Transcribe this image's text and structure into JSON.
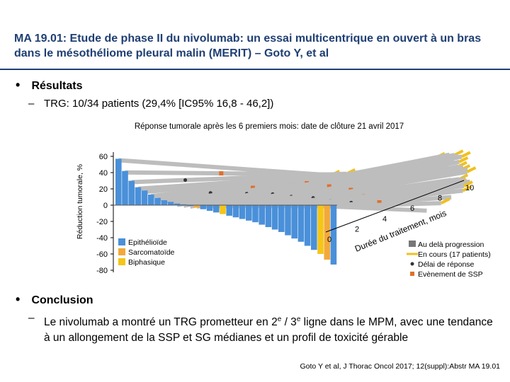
{
  "header": {
    "title": "MA 19.01: Etude de phase II du nivolumab: un essai multicentrique en ouvert à un bras dans le mésothéliome pleural malin (MERIT) – Goto Y, et al"
  },
  "sections": {
    "results": {
      "bullet": "Résultats",
      "sub_line": "TRG: 10/34 patients (29,4% [IC95% 16,8 - 46,2])"
    },
    "conclusion": {
      "bullet": "Conclusion",
      "text_pre": "Le nivolumab a montré un TRG prometteur en 2",
      "sup1": "e",
      "text_mid": " / 3",
      "sup2": "e",
      "text_post": " ligne dans le MPM, avec une tendance à un allongement de la SSP et SG médianes et un profil de toxicité gérable"
    }
  },
  "citation": "Goto Y et al, J Thorac Oncol 2017; 12(suppl):Abstr MA 19.01",
  "chart_data": {
    "type": "bar",
    "title": "Réponse tumorale après les 6 premiers mois: date de clôture 21 avril 2017",
    "ylabel": "Réduction tumorale, %",
    "y_ticks": [
      "60",
      "40",
      "20",
      "0",
      "-20",
      "-40",
      "-60",
      "-80"
    ],
    "ylim": [
      -80,
      60
    ],
    "z_axis_label": "Durée du traitement, mois",
    "z_ticks": [
      "0",
      "2",
      "4",
      "6",
      "8",
      "10"
    ],
    "z_range": [
      0,
      10
    ],
    "colors": {
      "Epithélioïde": "#4a90d9",
      "Sarcomatoïde": "#f2a93b",
      "Biphasique": "#f5c518",
      "duration_bar": "#bdbdbd",
      "ongoing_arrow": "#f0c020",
      "response_dot": "#333333",
      "pfs_event": "#e0702a"
    },
    "legend_histology": [
      "Epithélioïde",
      "Sarcomatoïde",
      "Biphasique"
    ],
    "legend_markers": [
      "Au delà progression",
      "En cours (17 patients)",
      "Délai de réponse",
      "Evènement de SSP"
    ],
    "patients": [
      {
        "change": 57,
        "histology": "Epithélioïde",
        "duration": 1.4
      },
      {
        "change": 42,
        "histology": "Epithélioïde",
        "duration": 1.9
      },
      {
        "change": 30,
        "histology": "Epithélioïde",
        "duration": 2.4
      },
      {
        "change": 22,
        "histology": "Epithélioïde",
        "duration": 2.6
      },
      {
        "change": 18,
        "histology": "Epithélioïde",
        "duration": 2.9
      },
      {
        "change": 13,
        "histology": "Epithélioïde",
        "duration": 3.4
      },
      {
        "change": 9,
        "histology": "Epithélioïde",
        "duration": 3.8
      },
      {
        "change": 6,
        "histology": "Epithélioïde",
        "duration": 4.1
      },
      {
        "change": 4,
        "histology": "Epithélioïde",
        "duration": 5.2
      },
      {
        "change": 2,
        "histology": "Epithélioïde",
        "duration": 6.0
      },
      {
        "change": 1,
        "histology": "Epithélioïde",
        "duration": 8.4
      },
      {
        "change": -1,
        "histology": "Epithélioïde",
        "duration": 9.3
      },
      {
        "change": -3,
        "histology": "Sarcomatoïde",
        "duration": 9.6
      },
      {
        "change": -5,
        "histology": "Epithélioïde",
        "duration": 9.8
      },
      {
        "change": -7,
        "histology": "Epithélioïde",
        "duration": 10.0
      },
      {
        "change": -9,
        "histology": "Epithélioïde",
        "duration": 9.4
      },
      {
        "change": -11,
        "histology": "Biphasique",
        "duration": 9.7
      },
      {
        "change": -13,
        "histology": "Epithélioïde",
        "duration": 8.9
      },
      {
        "change": -15,
        "histology": "Epithélioïde",
        "duration": 9.5
      },
      {
        "change": -17,
        "histology": "Epithélioïde",
        "duration": 9.8
      },
      {
        "change": -19,
        "histology": "Epithélioïde",
        "duration": 9.6
      },
      {
        "change": -21,
        "histology": "Epithélioïde",
        "duration": 10.0
      },
      {
        "change": -24,
        "histology": "Epithélioïde",
        "duration": 9.9
      },
      {
        "change": -27,
        "histology": "Epithélioïde",
        "duration": 8.7
      },
      {
        "change": -30,
        "histology": "Epithélioïde",
        "duration": 9.2
      },
      {
        "change": -33,
        "histology": "Epithélioïde",
        "duration": 9.6
      },
      {
        "change": -37,
        "histology": "Epithélioïde",
        "duration": 9.0
      },
      {
        "change": -41,
        "histology": "Epithélioïde",
        "duration": 9.8
      },
      {
        "change": -45,
        "histology": "Epithélioïde",
        "duration": 9.3
      },
      {
        "change": -50,
        "histology": "Epithélioïde",
        "duration": 8.6
      },
      {
        "change": -55,
        "histology": "Epithélioïde",
        "duration": 9.1
      },
      {
        "change": -60,
        "histology": "Biphasique",
        "duration": 8.2
      },
      {
        "change": -67,
        "histology": "Sarcomatoïde",
        "duration": 7.4
      },
      {
        "change": -73,
        "histology": "Epithélioïde",
        "duration": 6.3
      }
    ]
  }
}
